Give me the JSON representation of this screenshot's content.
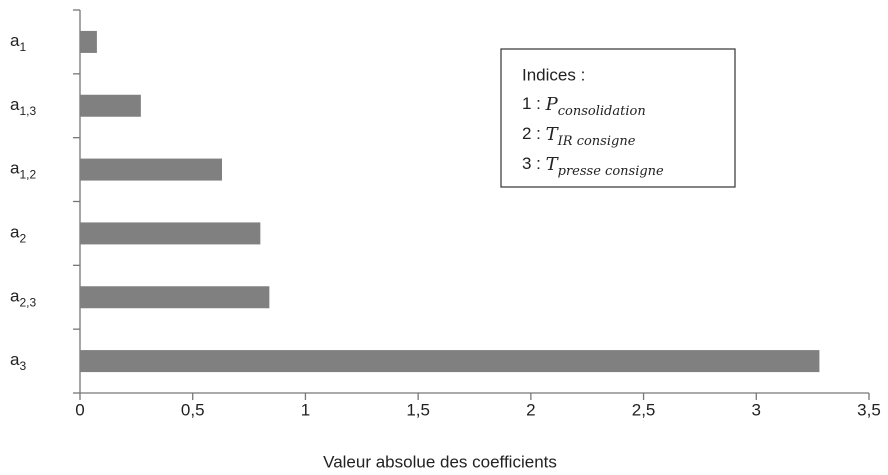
{
  "chart_data": {
    "type": "hbar",
    "categories": [
      {
        "base": "a",
        "sub": "1"
      },
      {
        "base": "a",
        "sub": "1,3"
      },
      {
        "base": "a",
        "sub": "1,2"
      },
      {
        "base": "a",
        "sub": "2"
      },
      {
        "base": "a",
        "sub": "2,3"
      },
      {
        "base": "a",
        "sub": "3"
      }
    ],
    "values": [
      0.075,
      0.27,
      0.63,
      0.8,
      0.84,
      3.28
    ],
    "color": "#808080",
    "xlim": [
      0,
      3.5
    ],
    "xticks": [
      0,
      {
        "value": 0.5,
        "label": "0,5"
      },
      1,
      {
        "value": 1.5,
        "label": "1,5"
      },
      2,
      {
        "value": 2.5,
        "label": "2,5"
      },
      3,
      {
        "value": 3.5,
        "label": "3,5"
      }
    ],
    "xlabel": "Valeur absolue des coefficients",
    "grid": false,
    "legend_box": {
      "title": "Indices :",
      "items": [
        {
          "prefix": "1 : ",
          "symbol": "P",
          "sub": "consolidation"
        },
        {
          "prefix": "2 : ",
          "symbol": "T",
          "sub": "IR consigne"
        },
        {
          "prefix": "3 : ",
          "symbol": "T",
          "sub": "presse consigne"
        }
      ]
    }
  }
}
